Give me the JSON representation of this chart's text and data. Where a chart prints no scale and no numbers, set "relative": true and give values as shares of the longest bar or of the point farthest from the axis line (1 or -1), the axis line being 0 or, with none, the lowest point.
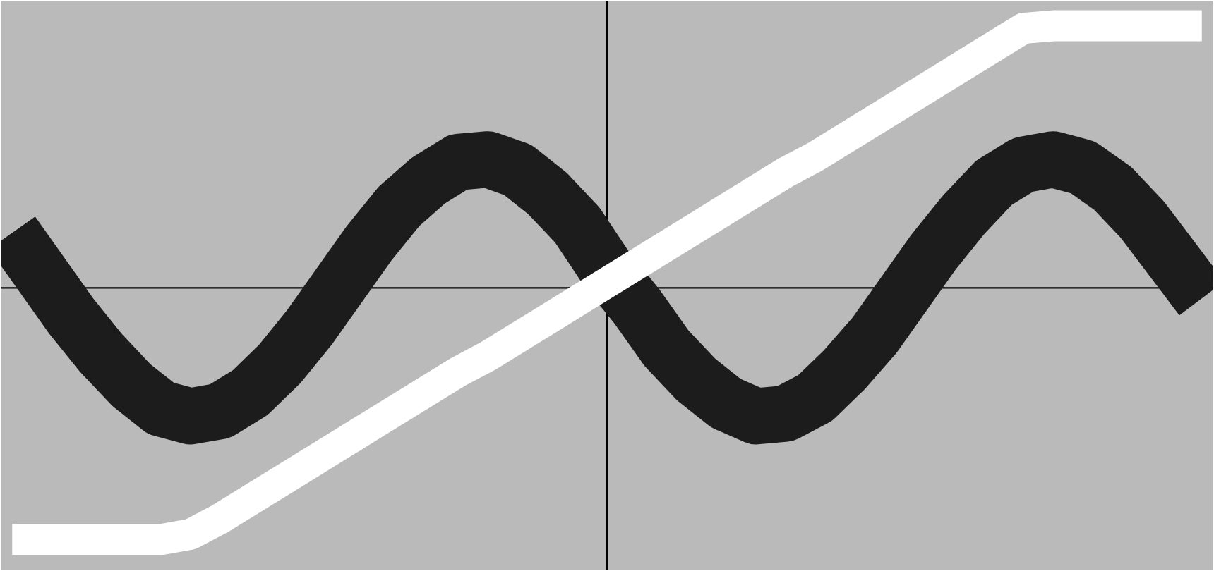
{
  "chart_data": {
    "type": "line",
    "relative": true,
    "marker": "none",
    "line_style": "solid",
    "categories": [
      null,
      null,
      null,
      null,
      null,
      null,
      null,
      null,
      null,
      null,
      null,
      null,
      null,
      null,
      null,
      null,
      null,
      null,
      null,
      null,
      null,
      null,
      null,
      null,
      null,
      null,
      null,
      null,
      null,
      null,
      null,
      null,
      null,
      null,
      null,
      null,
      null,
      null,
      null,
      null,
      null
    ],
    "series": [
      {
        "color": "#1c1c1c",
        "values": [
          0.21,
          0.05,
          -0.11,
          -0.25,
          -0.37,
          -0.46,
          -0.49,
          -0.47,
          -0.4,
          -0.29,
          -0.15,
          0.01,
          0.17,
          0.31,
          0.41,
          0.48,
          0.49,
          0.45,
          0.36,
          0.24,
          0.07,
          -0.07,
          -0.23,
          -0.35,
          -0.44,
          -0.49,
          -0.48,
          -0.42,
          -0.31,
          -0.18,
          -0.02,
          0.14,
          0.28,
          0.4,
          0.47,
          0.49,
          0.46,
          0.38,
          0.26,
          0.11,
          -0.04
        ]
      },
      {
        "color": "#ffffff",
        "values": [
          -0.96,
          -0.96,
          -0.96,
          -0.96,
          -0.96,
          -0.96,
          -0.94,
          -0.88,
          -0.81,
          -0.74,
          -0.67,
          -0.6,
          -0.53,
          -0.46,
          -0.39,
          -0.32,
          -0.26,
          -0.19,
          -0.12,
          -0.05,
          0.02,
          0.09,
          0.16,
          0.23,
          0.3,
          0.37,
          0.44,
          0.5,
          0.57,
          0.64,
          0.71,
          0.78,
          0.85,
          0.92,
          0.99,
          1.0,
          1.0,
          1.0,
          1.0,
          1.0,
          1.0
        ]
      }
    ]
  }
}
